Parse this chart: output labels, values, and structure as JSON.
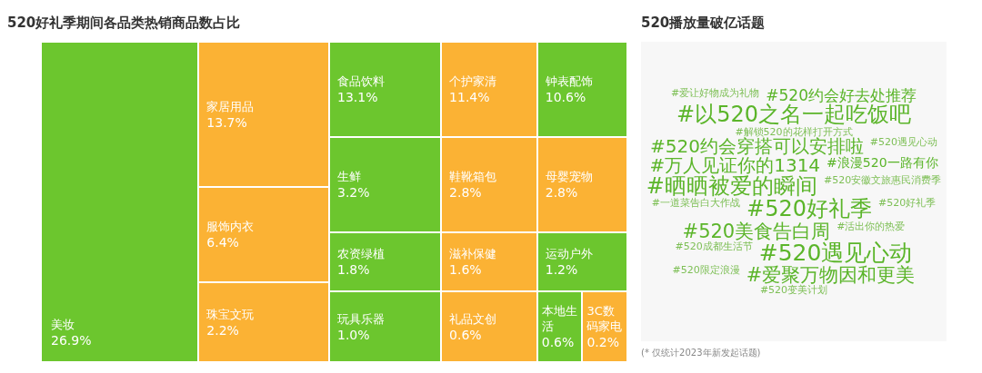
{
  "chart_data": [
    {
      "type": "other",
      "title": "520好礼季期间各品类热销商品数占比",
      "categories": [
        "美妆",
        "家居用品",
        "食品饮料",
        "个护家清",
        "钟表配饰",
        "服饰内衣",
        "生鲜",
        "鞋靴箱包",
        "母婴宠物",
        "珠宝文玩",
        "农资绿植",
        "滋补保健",
        "运动户外",
        "玩具乐器",
        "礼品文创",
        "本地生活",
        "3C数码家电"
      ],
      "values": [
        26.9,
        13.7,
        13.1,
        11.4,
        10.6,
        6.4,
        3.2,
        2.8,
        2.8,
        2.2,
        1.8,
        1.6,
        1.2,
        1.0,
        0.6,
        0.6,
        0.2
      ],
      "value_labels": [
        "26.9%",
        "13.7%",
        "13.1%",
        "11.4%",
        "10.6%",
        "6.4%",
        "3.2%",
        "2.8%",
        "2.8%",
        "2.2%",
        "1.8%",
        "1.6%",
        "1.2%",
        "1.0%",
        "0.6%",
        "0.6%",
        "0.2%"
      ],
      "colors": [
        "#6cc62e",
        "#fbb234",
        "#6cc62e",
        "#fbb234",
        "#6cc62e",
        "#fbb234",
        "#6cc62e",
        "#fbb234",
        "#fbb234",
        "#fbb234",
        "#6cc62e",
        "#fbb234",
        "#6cc62e",
        "#6cc62e",
        "#fbb234",
        "#6cc62e",
        "#fbb234"
      ]
    },
    {
      "type": "other",
      "title": "520播放量破亿话题",
      "categories": [
        "#爱让好物成为礼物",
        "#520约会好去处推荐",
        "#以520之名一起吃饭吧",
        "#解锁520的花样打开方式",
        "#520约会穿搭可以安排啦",
        "#520遇见心动",
        "#万人见证你的1314",
        "#浪漫520一路有你",
        "#晒晒被爱的瞬间",
        "#520安徽文旅惠民消费季",
        "#一道菜告白大作战",
        "#520好礼季",
        "#520好礼季",
        "#520美食告白周",
        "#活出你的热爱",
        "#520成都生活节",
        "#520遇见心动",
        "#520限定浪漫",
        "#爱聚万物因和更美",
        "#520变美计划"
      ],
      "annotations": [
        "(* 仅统计2023年新发起话题)"
      ]
    }
  ]
}
